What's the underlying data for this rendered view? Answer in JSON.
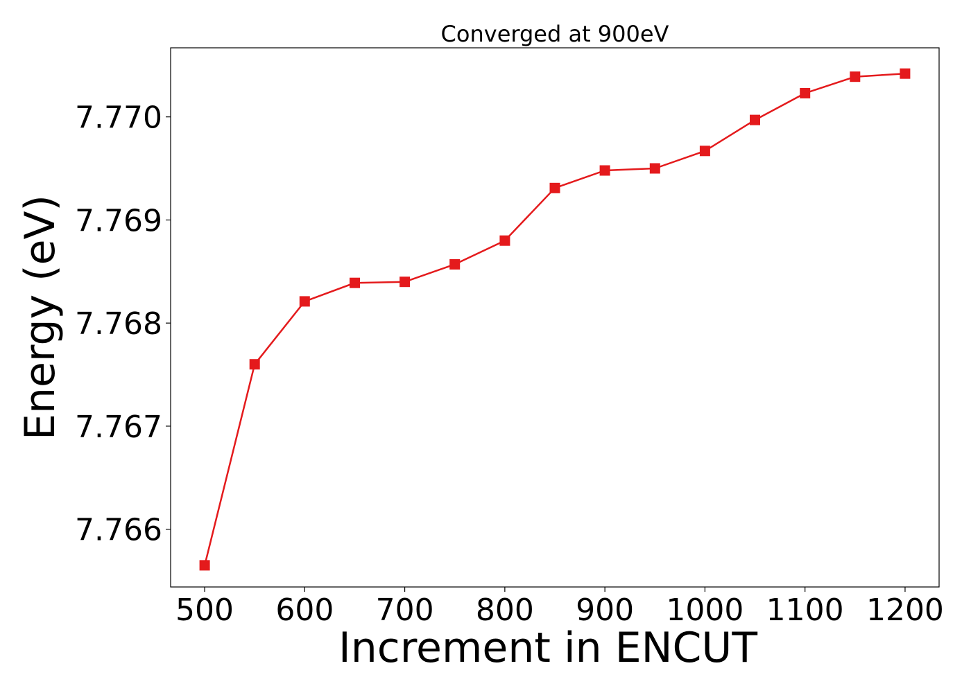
{
  "chart_data": {
    "type": "line",
    "title": "Converged at 900eV",
    "xlabel": "Increment in ENCUT",
    "ylabel": "Energy (eV)",
    "x": [
      500,
      550,
      600,
      650,
      700,
      750,
      800,
      850,
      900,
      950,
      1000,
      1050,
      1100,
      1150,
      1200
    ],
    "series": [
      {
        "values": [
          7.76565,
          7.7676,
          7.76821,
          7.76839,
          7.7684,
          7.76857,
          7.7688,
          7.76931,
          7.76948,
          7.7695,
          7.76967,
          7.76997,
          7.77023,
          7.77039,
          7.77042
        ],
        "color": "#e41a1c",
        "marker": "square"
      }
    ],
    "xlim": [
      466,
      1234
    ],
    "ylim": [
      7.76544,
      7.77067
    ],
    "xticks": [
      500,
      600,
      700,
      800,
      900,
      1000,
      1100,
      1200
    ],
    "xtick_labels": [
      "500",
      "600",
      "700",
      "800",
      "900",
      "1000",
      "1100",
      "1200"
    ],
    "yticks": [
      7.766,
      7.767,
      7.768,
      7.769,
      7.77
    ],
    "ytick_labels": [
      "7.766",
      "7.767",
      "7.768",
      "7.769",
      "7.770"
    ],
    "grid": false,
    "legend": "none"
  }
}
